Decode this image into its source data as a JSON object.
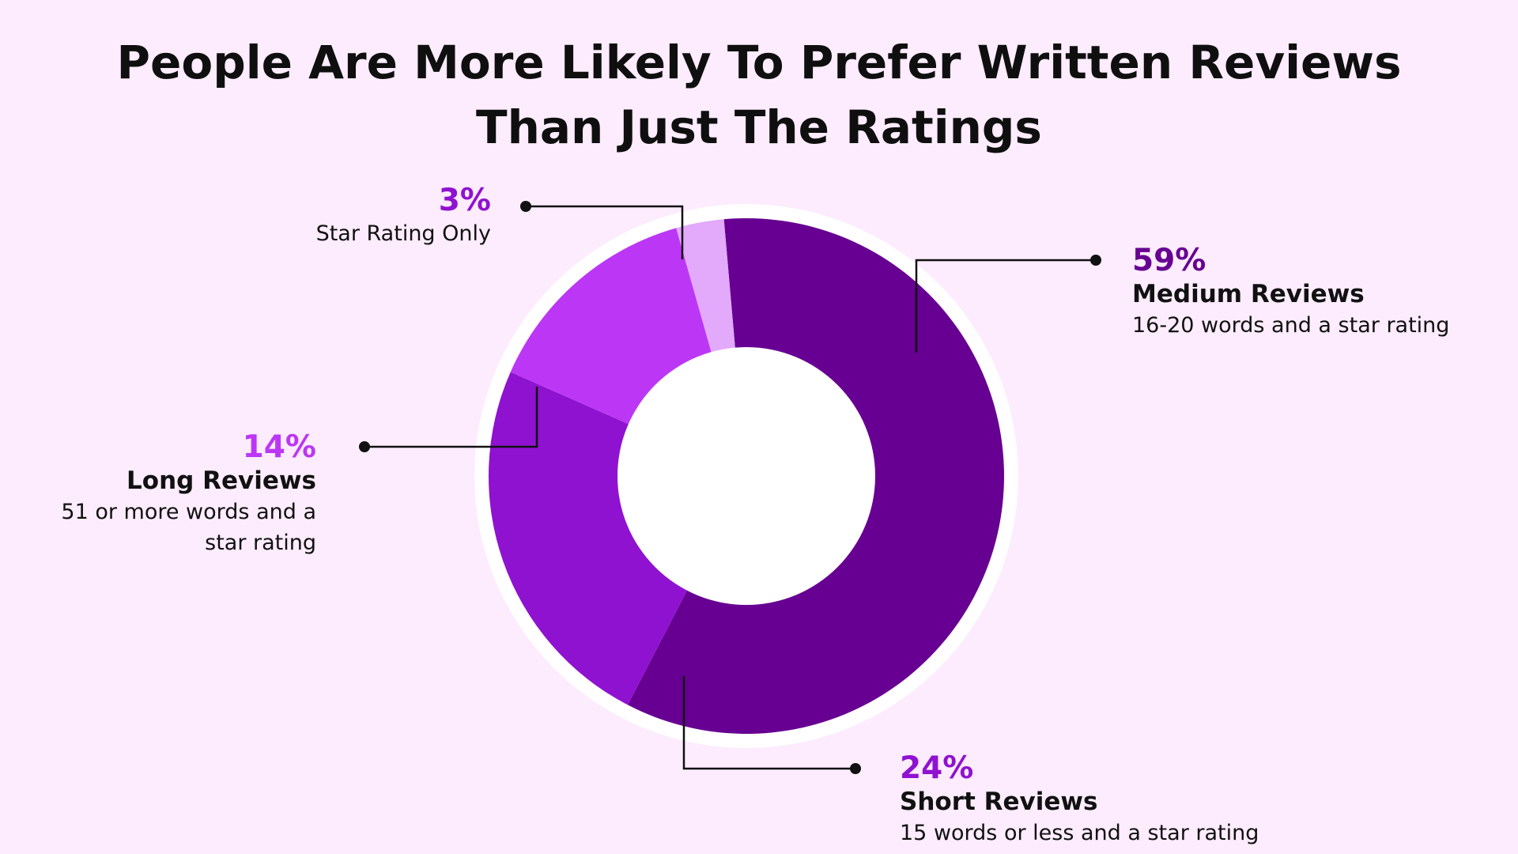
{
  "chart_data": {
    "type": "pie",
    "title_lines": [
      "People Are More Likely To Prefer Written Reviews",
      "Than Just The Ratings"
    ],
    "slices": [
      {
        "pct_label": "59%",
        "value": 59,
        "name": "Medium Reviews",
        "desc": "16-20 words and a star rating",
        "color": "#670092"
      },
      {
        "pct_label": "24%",
        "value": 24,
        "name": "Short Reviews",
        "desc": "15 words or less and a star rating",
        "color": "#8f12d0"
      },
      {
        "pct_label": "14%",
        "value": 14,
        "name": "Long Reviews",
        "desc": "51 or more words and a star rating",
        "color": "#bb37f5"
      },
      {
        "pct_label": "3%",
        "value": 3,
        "name": "",
        "desc": "Star Rating Only",
        "color": "#e3a9fb"
      }
    ],
    "label_colors": {
      "medium": "#670092",
      "short": "#8f12d0",
      "long": "#bb37f5",
      "star": "#8f12d0"
    }
  }
}
